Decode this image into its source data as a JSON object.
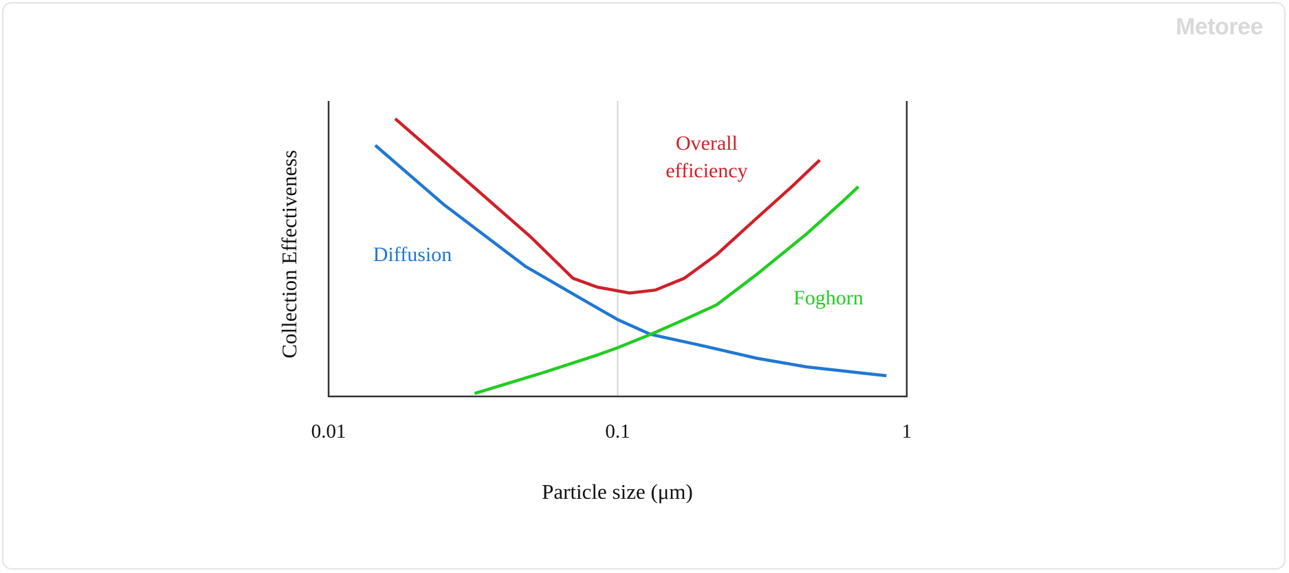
{
  "watermark": "Metoree",
  "chart_data": {
    "type": "line",
    "xscale": "log",
    "xlim": [
      0.01,
      1
    ],
    "ylim": [
      0,
      1
    ],
    "xlabel": "Particle size (μm)",
    "ylabel": "Collection Effectiveness",
    "xticks": [
      {
        "value": 0.01,
        "label": "0.01"
      },
      {
        "value": 0.1,
        "label": "0.1"
      },
      {
        "value": 1,
        "label": "1"
      }
    ],
    "series": [
      {
        "name": "Overall efficiency",
        "label_lines": [
          "Overall",
          "efficiency"
        ],
        "color": "#d0202a",
        "points": [
          [
            0.017,
            0.94
          ],
          [
            0.03,
            0.73
          ],
          [
            0.05,
            0.54
          ],
          [
            0.07,
            0.4
          ],
          [
            0.085,
            0.37
          ],
          [
            0.11,
            0.35
          ],
          [
            0.135,
            0.36
          ],
          [
            0.17,
            0.4
          ],
          [
            0.22,
            0.48
          ],
          [
            0.3,
            0.6
          ],
          [
            0.4,
            0.71
          ],
          [
            0.5,
            0.8
          ]
        ]
      },
      {
        "name": "Diffusion",
        "label_lines": [
          "Diffusion"
        ],
        "color": "#1f78d1",
        "points": [
          [
            0.0145,
            0.85
          ],
          [
            0.025,
            0.65
          ],
          [
            0.048,
            0.44
          ],
          [
            0.075,
            0.33
          ],
          [
            0.1,
            0.26
          ],
          [
            0.13,
            0.21
          ],
          [
            0.2,
            0.17
          ],
          [
            0.3,
            0.13
          ],
          [
            0.45,
            0.1
          ],
          [
            0.85,
            0.07
          ]
        ]
      },
      {
        "name": "Foghorn",
        "label_lines": [
          "Foghorn"
        ],
        "color": "#22cc22",
        "points": [
          [
            0.032,
            0.01
          ],
          [
            0.055,
            0.08
          ],
          [
            0.085,
            0.14
          ],
          [
            0.1,
            0.165
          ],
          [
            0.13,
            0.21
          ],
          [
            0.17,
            0.26
          ],
          [
            0.22,
            0.31
          ],
          [
            0.3,
            0.41
          ],
          [
            0.45,
            0.55
          ],
          [
            0.6,
            0.66
          ],
          [
            0.68,
            0.71
          ]
        ]
      }
    ]
  }
}
